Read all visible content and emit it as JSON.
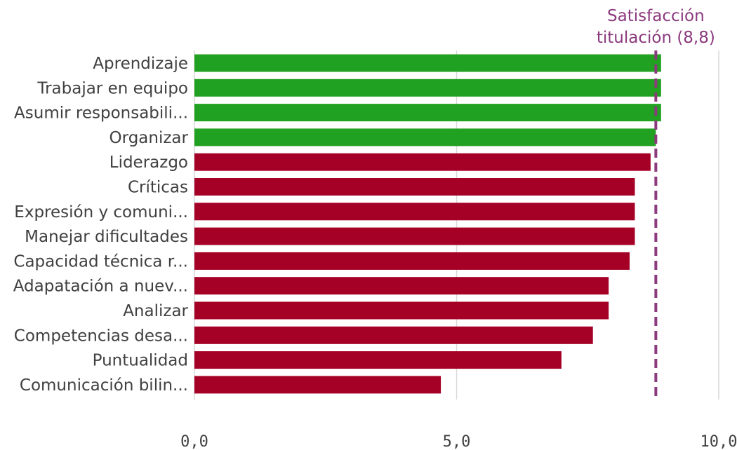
{
  "chart_data": {
    "type": "bar",
    "orientation": "horizontal",
    "categories": [
      "Aprendizaje",
      "Trabajar en equipo",
      "Asumir responsabili...",
      "Organizar",
      "Liderazgo",
      "Críticas",
      "Expresión y comuni...",
      "Manejar dificultades",
      "Capacidad técnica r...",
      "Adapatación a nuev...",
      "Analizar",
      "Competencias desa...",
      "Puntualidad",
      "Comunicación bilin..."
    ],
    "values": [
      8.9,
      8.9,
      8.9,
      8.8,
      8.7,
      8.4,
      8.4,
      8.4,
      8.3,
      7.9,
      7.9,
      7.6,
      7.0,
      4.7
    ],
    "status": [
      "above",
      "above",
      "above",
      "above",
      "below",
      "below",
      "below",
      "below",
      "below",
      "below",
      "below",
      "below",
      "below",
      "below"
    ],
    "xlim": [
      0,
      10
    ],
    "xticks": [
      "0,0",
      "5,0",
      "10,0"
    ],
    "xtick_values": [
      0,
      5,
      10
    ],
    "grid": true,
    "reference_line": {
      "value": 8.8,
      "label_line1": "Satisfacción",
      "label_line2": "titulación (8,8)",
      "color": "#8b3a7e",
      "style": "dashed"
    },
    "colors": {
      "above": "#21a121",
      "below": "#a50026",
      "grid": "#d9d9d9",
      "text": "#404040"
    }
  }
}
